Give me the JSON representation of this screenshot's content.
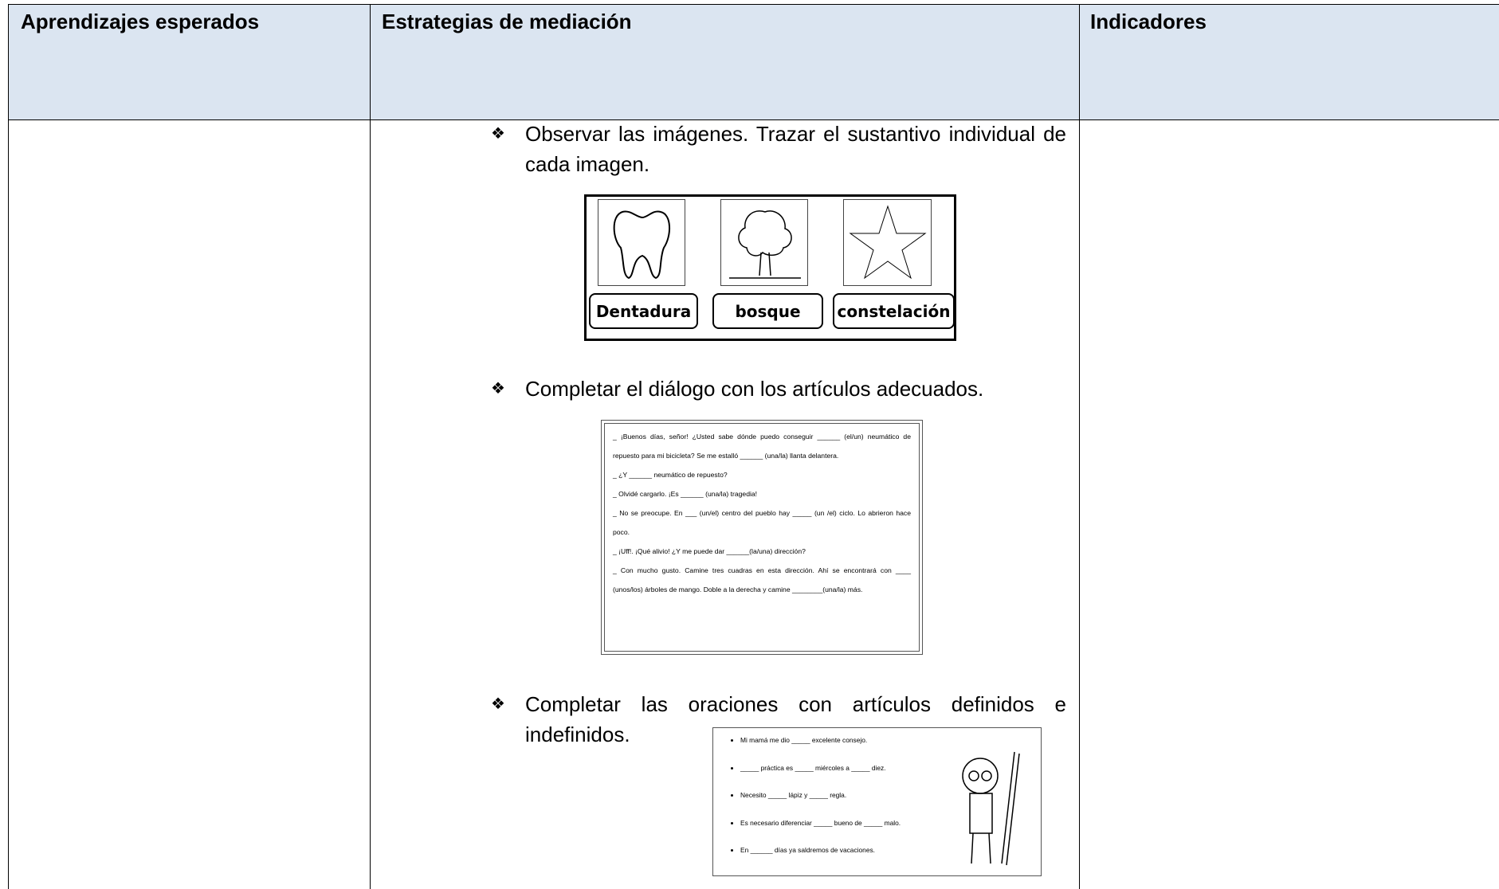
{
  "table": {
    "header": [
      "Aprendizajes esperados",
      "Estrategias de mediación",
      "Indicadores"
    ],
    "activities": [
      {
        "instruction": "Observar las imágenes. Trazar el sustantivo individual de cada imagen.",
        "labels": [
          "Dentadura",
          "bosque",
          "constelación"
        ]
      },
      {
        "instruction": "Completar el diálogo con los artículos adecuados.",
        "lines": [
          "_ ¡Buenos días, señor! ¿Usted sabe dónde puedo conseguir ______ (el/un) neumático de repuesto para mi bicicleta? Se me estalló ______ (una/la) llanta delantera.",
          "_ ¿Y ______ neumático de repuesto?",
          "_ Olvidé cargarlo. ¡Es ______ (una/la) tragedia!",
          "_ No se preocupe. En ___ (un/el) centro del pueblo hay _____ (un /el) ciclo. Lo abrieron hace poco.",
          "_ ¡Uff!. ¡Qué alivio! ¿Y me puede dar ______(la/una) dirección?",
          "_ Con mucho gusto. Camine tres cuadras en esta dirección. Ahí se encontrará con ____ (unos/los) árboles de mango. Doble a la derecha y camine ________(una/la) más."
        ]
      },
      {
        "instruction": "Completar las oraciones con artículos definidos e indefinidos.",
        "sentences": [
          "Mi mamá me dio _____ excelente consejo.",
          "_____ práctica es _____ miércoles a _____ diez.",
          "Necesito _____ lápiz y _____ regla.",
          "Es necesario diferenciar _____ bueno de _____ malo.",
          "En ______ días ya saldremos de vacaciones."
        ]
      }
    ]
  }
}
